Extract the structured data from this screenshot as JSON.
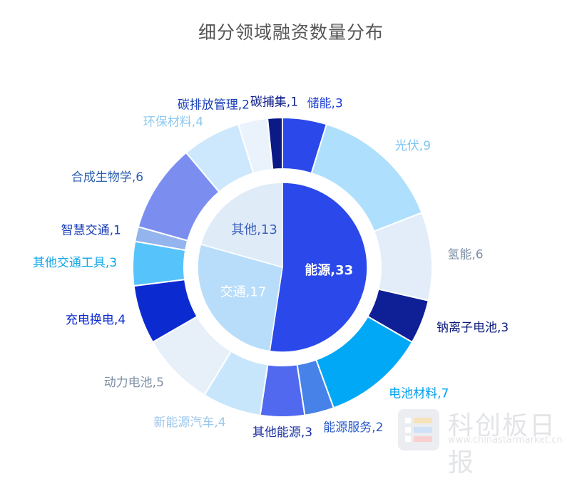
{
  "chart_data": {
    "type": "pie",
    "subtype": "nested-donut",
    "title": "细分领域融资数量分布",
    "inner": [
      {
        "name": "能源",
        "value": 33,
        "color": "#2b49ea"
      },
      {
        "name": "交通",
        "value": 17,
        "color": "#b8ddfa"
      },
      {
        "name": "其他",
        "value": 13,
        "color": "#e0ebf8"
      }
    ],
    "outer": [
      {
        "name": "储能",
        "value": 3,
        "color": "#2b49ea",
        "label_color": "#1c3fd8"
      },
      {
        "name": "光伏",
        "value": 9,
        "color": "#aedffd",
        "label_color": "#7ec7f2"
      },
      {
        "name": "氢能",
        "value": 6,
        "color": "#e3edfa",
        "label_color": "#7d8fa6"
      },
      {
        "name": "钠离子电池",
        "value": 3,
        "color": "#0f1f96",
        "label_color": "#0a1a7a"
      },
      {
        "name": "电池材料",
        "value": 7,
        "color": "#00a8f5",
        "label_color": "#00a0ee"
      },
      {
        "name": "能源服务",
        "value": 2,
        "color": "#4682e8",
        "label_color": "#2657c7"
      },
      {
        "name": "其他能源",
        "value": 3,
        "color": "#5069ee",
        "label_color": "#1c2fa0"
      },
      {
        "name": "新能源汽车",
        "value": 4,
        "color": "#c7e6fb",
        "label_color": "#9cc7ec"
      },
      {
        "name": "动力电池",
        "value": 5,
        "color": "#e7eff9",
        "label_color": "#7d8fa6"
      },
      {
        "name": "充电换电",
        "value": 4,
        "color": "#0b2ad0",
        "label_color": "#0b2ad0"
      },
      {
        "name": "其他交通工具",
        "value": 3,
        "color": "#56c4fb",
        "label_color": "#10a6e8"
      },
      {
        "name": "智慧交通",
        "value": 1,
        "color": "#93b4ec",
        "label_color": "#1a3fb8"
      },
      {
        "name": "合成生物学",
        "value": 6,
        "color": "#7b8ef0",
        "label_color": "#2c5fb0"
      },
      {
        "name": "环保材料",
        "value": 4,
        "color": "#cde8fc",
        "label_color": "#8ec8f0"
      },
      {
        "name": "碳排放管理",
        "value": 2,
        "color": "#eaf2fc",
        "label_color": "#1a3fb8"
      },
      {
        "name": "碳捕集",
        "value": 1,
        "color": "#0b1a86",
        "label_color": "#0b1a86"
      }
    ],
    "label_format": "{name},{value}"
  },
  "watermark": {
    "brand": "科创板日报",
    "url": "www.chinastarmarket.cn"
  }
}
